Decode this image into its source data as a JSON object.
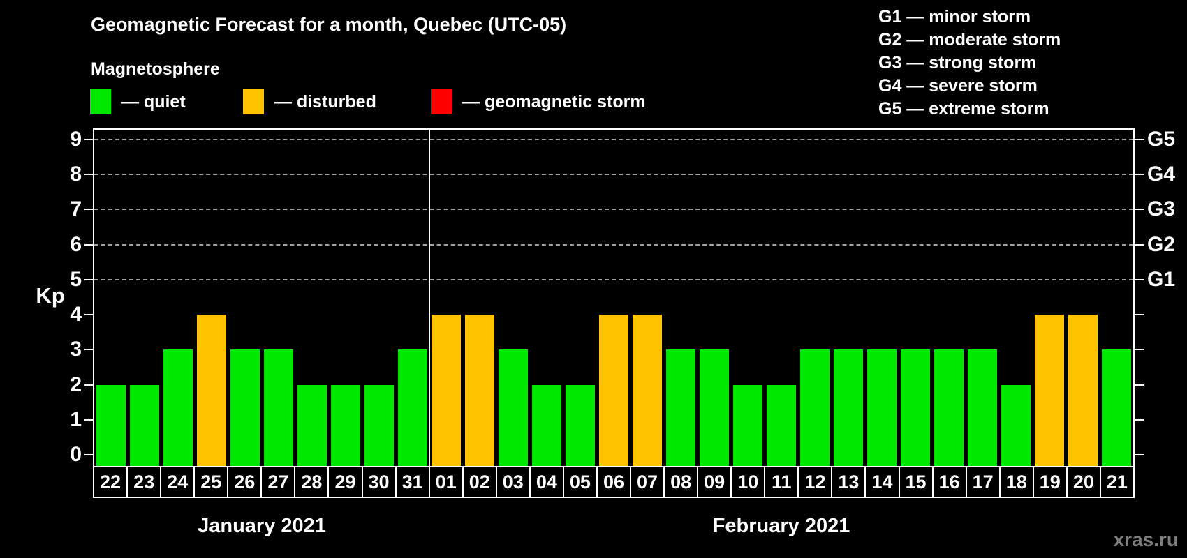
{
  "header": {
    "title": "Geomagnetic Forecast for a month, Quebec (UTC-05)",
    "subtitle": "Magnetosphere"
  },
  "legend": {
    "items": [
      {
        "state": "quiet",
        "label": "— quiet",
        "color": "#00e800"
      },
      {
        "state": "disturbed",
        "label": "— disturbed",
        "color": "#ffc400"
      },
      {
        "state": "storm",
        "label": "— geomagnetic storm",
        "color": "#ff0000"
      }
    ]
  },
  "g_scale_legend": {
    "lines": [
      "G1 — minor storm",
      "G2 — moderate storm",
      "G3 — strong storm",
      "G4 — severe storm",
      "G5 — extreme storm"
    ]
  },
  "watermark": "xras.ru",
  "colors": {
    "background": "#000000",
    "axis": "#ffffff",
    "gridline": "#a0a0a0",
    "watermark": "#7d7d7d"
  },
  "chart_data": {
    "type": "bar",
    "title": "Geomagnetic Forecast for a month, Quebec (UTC-05)",
    "ylabel": "Kp",
    "ylim": [
      0,
      9
    ],
    "y_ticks": [
      0,
      1,
      2,
      3,
      4,
      5,
      6,
      7,
      8,
      9
    ],
    "grid": "dashed horizontal lines at Kp 5,6,7,8,9",
    "legend_position": "top",
    "right_axis": {
      "labels": [
        "G1",
        "G2",
        "G3",
        "G4",
        "G5"
      ],
      "at_kp": [
        5,
        6,
        7,
        8,
        9
      ]
    },
    "months": [
      {
        "label": "January 2021",
        "days": [
          "22",
          "23",
          "24",
          "25",
          "26",
          "27",
          "28",
          "29",
          "30",
          "31"
        ],
        "kp": [
          2,
          2,
          3,
          4,
          3,
          3,
          2,
          2,
          2,
          3
        ],
        "state": [
          "quiet",
          "quiet",
          "quiet",
          "disturbed",
          "quiet",
          "quiet",
          "quiet",
          "quiet",
          "quiet",
          "quiet"
        ]
      },
      {
        "label": "February 2021",
        "days": [
          "01",
          "02",
          "03",
          "04",
          "05",
          "06",
          "07",
          "08",
          "09",
          "10",
          "11",
          "12",
          "13",
          "14",
          "15",
          "16",
          "17",
          "18",
          "19",
          "20",
          "21"
        ],
        "kp": [
          4,
          4,
          3,
          2,
          2,
          4,
          4,
          3,
          3,
          2,
          2,
          3,
          3,
          3,
          3,
          3,
          3,
          2,
          4,
          4,
          3
        ],
        "state": [
          "disturbed",
          "disturbed",
          "quiet",
          "quiet",
          "quiet",
          "disturbed",
          "disturbed",
          "quiet",
          "quiet",
          "quiet",
          "quiet",
          "quiet",
          "quiet",
          "quiet",
          "quiet",
          "quiet",
          "quiet",
          "quiet",
          "disturbed",
          "disturbed",
          "quiet"
        ]
      }
    ]
  }
}
